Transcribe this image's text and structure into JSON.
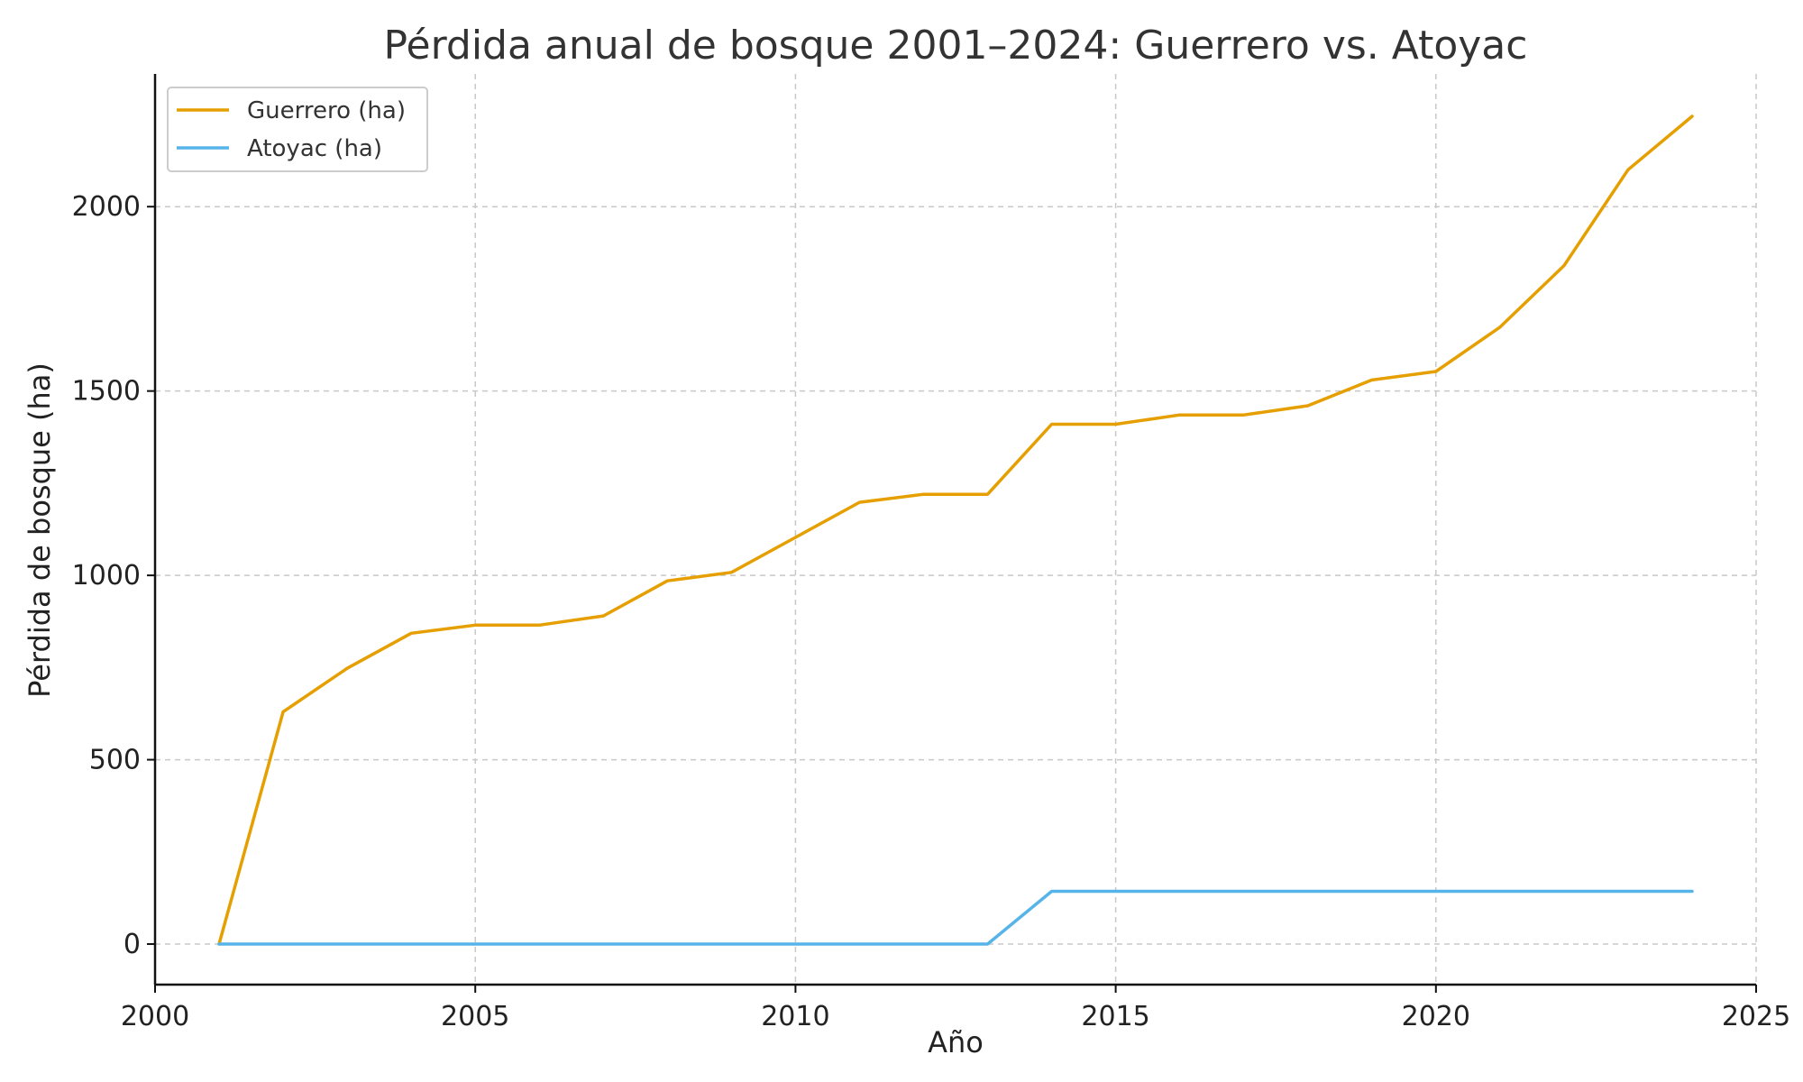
{
  "chart_data": {
    "type": "line",
    "title": "Pérdida anual de bosque 2001–2024: Guerrero vs. Atoyac",
    "xlabel": "Año",
    "ylabel": "Pérdida de bosque (ha)",
    "xlim": [
      2000,
      2025
    ],
    "ylim": [
      -110,
      2360
    ],
    "xticks": [
      2000,
      2005,
      2010,
      2015,
      2020,
      2025
    ],
    "yticks": [
      0,
      500,
      1000,
      1500,
      2000
    ],
    "grid": true,
    "legend_position": "top-left",
    "x": [
      2001,
      2002,
      2003,
      2004,
      2005,
      2006,
      2007,
      2008,
      2009,
      2010,
      2011,
      2012,
      2013,
      2014,
      2015,
      2016,
      2017,
      2018,
      2019,
      2020,
      2021,
      2022,
      2023,
      2024
    ],
    "series": [
      {
        "name": "Guerrero (ha)",
        "color": "#E69F00",
        "values": [
          0,
          630,
          748,
          843,
          865,
          865,
          890,
          985,
          1008,
          1103,
          1198,
          1220,
          1220,
          1410,
          1410,
          1435,
          1435,
          1460,
          1530,
          1553,
          1673,
          1840,
          2100,
          2245
        ]
      },
      {
        "name": "Atoyac (ha)",
        "color": "#56B4E9",
        "values": [
          0,
          0,
          0,
          0,
          0,
          0,
          0,
          0,
          0,
          0,
          0,
          0,
          0,
          143,
          143,
          143,
          143,
          143,
          143,
          143,
          143,
          143,
          143,
          143
        ]
      }
    ]
  }
}
